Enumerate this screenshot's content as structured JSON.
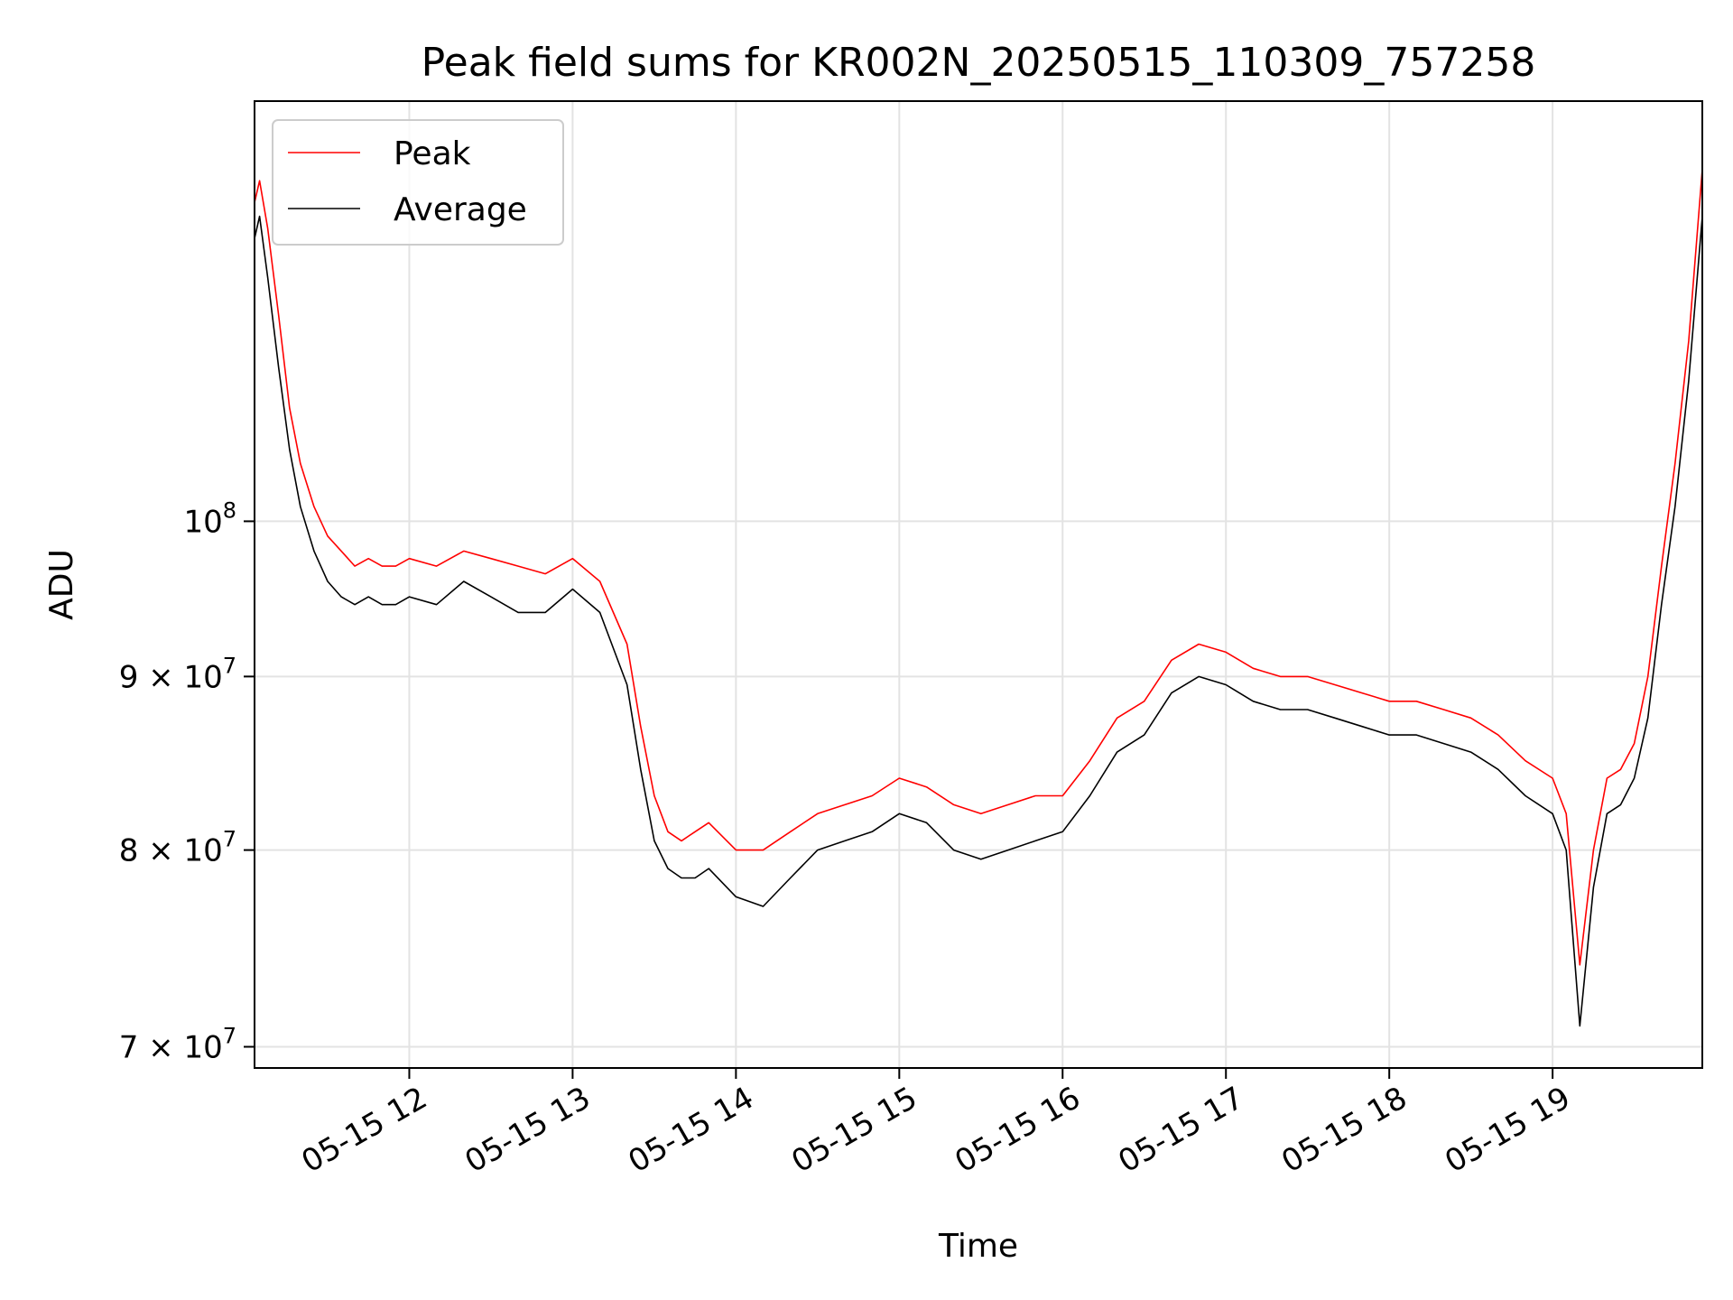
{
  "chart_data": {
    "type": "line",
    "title": "Peak field sums for KR002N_20250515_110309_757258",
    "xlabel": "Time",
    "ylabel": "ADU",
    "x_scale": "time",
    "y_scale": "log",
    "xlim": [
      "2025-05-15T11:03:09",
      "2025-05-15T19:55:00"
    ],
    "ylim": [
      69000000,
      133000000
    ],
    "x_ticks": [
      {
        "value": "2025-05-15T12:00:00",
        "label": "05-15 12"
      },
      {
        "value": "2025-05-15T13:00:00",
        "label": "05-15 13"
      },
      {
        "value": "2025-05-15T14:00:00",
        "label": "05-15 14"
      },
      {
        "value": "2025-05-15T15:00:00",
        "label": "05-15 15"
      },
      {
        "value": "2025-05-15T16:00:00",
        "label": "05-15 16"
      },
      {
        "value": "2025-05-15T17:00:00",
        "label": "05-15 17"
      },
      {
        "value": "2025-05-15T18:00:00",
        "label": "05-15 18"
      },
      {
        "value": "2025-05-15T19:00:00",
        "label": "05-15 19"
      }
    ],
    "y_ticks": [
      {
        "value": 70000000,
        "base": "7 × 10",
        "exp": "7"
      },
      {
        "value": 80000000,
        "base": "8 × 10",
        "exp": "7"
      },
      {
        "value": 90000000,
        "base": "9 × 10",
        "exp": "7"
      },
      {
        "value": 100000000,
        "base": "10",
        "exp": "8"
      }
    ],
    "grid": true,
    "legend_position": "top-left",
    "series": [
      {
        "name": "Peak",
        "color": "#ff0000",
        "x": [
          "11:03",
          "11:05",
          "11:08",
          "11:12",
          "11:16",
          "11:20",
          "11:25",
          "11:30",
          "11:35",
          "11:40",
          "11:45",
          "11:50",
          "11:55",
          "12:00",
          "12:10",
          "12:20",
          "12:30",
          "12:40",
          "12:50",
          "13:00",
          "13:10",
          "13:20",
          "13:25",
          "13:30",
          "13:35",
          "13:40",
          "13:45",
          "13:50",
          "14:00",
          "14:10",
          "14:20",
          "14:30",
          "14:40",
          "14:50",
          "15:00",
          "15:10",
          "15:20",
          "15:30",
          "15:40",
          "15:50",
          "16:00",
          "16:10",
          "16:20",
          "16:30",
          "16:40",
          "16:50",
          "17:00",
          "17:10",
          "17:20",
          "17:30",
          "17:40",
          "17:50",
          "18:00",
          "18:10",
          "18:20",
          "18:30",
          "18:40",
          "18:50",
          "19:00",
          "19:05",
          "19:10",
          "19:15",
          "19:20",
          "19:25",
          "19:30",
          "19:35",
          "19:40",
          "19:45",
          "19:50",
          "19:55"
        ],
        "y": [
          124000000,
          126000000,
          122000000,
          115000000,
          108000000,
          104000000,
          101000000,
          99000000,
          98000000,
          97000000,
          97500000,
          97000000,
          97000000,
          97500000,
          97000000,
          98000000,
          97500000,
          97000000,
          96500000,
          97500000,
          96000000,
          92000000,
          87000000,
          83000000,
          81000000,
          80500000,
          81000000,
          81500000,
          80000000,
          80000000,
          81000000,
          82000000,
          82500000,
          83000000,
          84000000,
          83500000,
          82500000,
          82000000,
          82500000,
          83000000,
          83000000,
          85000000,
          87500000,
          88500000,
          91000000,
          92000000,
          91500000,
          90500000,
          90000000,
          90000000,
          89500000,
          89000000,
          88500000,
          88500000,
          88000000,
          87500000,
          86500000,
          85000000,
          84000000,
          82000000,
          74000000,
          80000000,
          84000000,
          84500000,
          86000000,
          90000000,
          97000000,
          104000000,
          113000000,
          127000000
        ]
      },
      {
        "name": "Average",
        "color": "#000000",
        "x": [
          "11:03",
          "11:05",
          "11:08",
          "11:12",
          "11:16",
          "11:20",
          "11:25",
          "11:30",
          "11:35",
          "11:40",
          "11:45",
          "11:50",
          "11:55",
          "12:00",
          "12:10",
          "12:20",
          "12:30",
          "12:40",
          "12:50",
          "13:00",
          "13:10",
          "13:20",
          "13:25",
          "13:30",
          "13:35",
          "13:40",
          "13:45",
          "13:50",
          "14:00",
          "14:10",
          "14:20",
          "14:30",
          "14:40",
          "14:50",
          "15:00",
          "15:10",
          "15:20",
          "15:30",
          "15:40",
          "15:50",
          "16:00",
          "16:10",
          "16:20",
          "16:30",
          "16:40",
          "16:50",
          "17:00",
          "17:10",
          "17:20",
          "17:30",
          "17:40",
          "17:50",
          "18:00",
          "18:10",
          "18:20",
          "18:30",
          "18:40",
          "18:50",
          "19:00",
          "19:05",
          "19:10",
          "19:15",
          "19:20",
          "19:25",
          "19:30",
          "19:35",
          "19:40",
          "19:45",
          "19:50",
          "19:55"
        ],
        "y": [
          121000000,
          123000000,
          118000000,
          111000000,
          105000000,
          101000000,
          98000000,
          96000000,
          95000000,
          94500000,
          95000000,
          94500000,
          94500000,
          95000000,
          94500000,
          96000000,
          95000000,
          94000000,
          94000000,
          95500000,
          94000000,
          89500000,
          84500000,
          80500000,
          79000000,
          78500000,
          78500000,
          79000000,
          77500000,
          77000000,
          78500000,
          80000000,
          80500000,
          81000000,
          82000000,
          81500000,
          80000000,
          79500000,
          80000000,
          80500000,
          81000000,
          83000000,
          85500000,
          86500000,
          89000000,
          90000000,
          89500000,
          88500000,
          88000000,
          88000000,
          87500000,
          87000000,
          86500000,
          86500000,
          86000000,
          85500000,
          84500000,
          83000000,
          82000000,
          80000000,
          71000000,
          78000000,
          82000000,
          82500000,
          84000000,
          87500000,
          94500000,
          101000000,
          110000000,
          123000000
        ]
      }
    ],
    "annotations": []
  }
}
